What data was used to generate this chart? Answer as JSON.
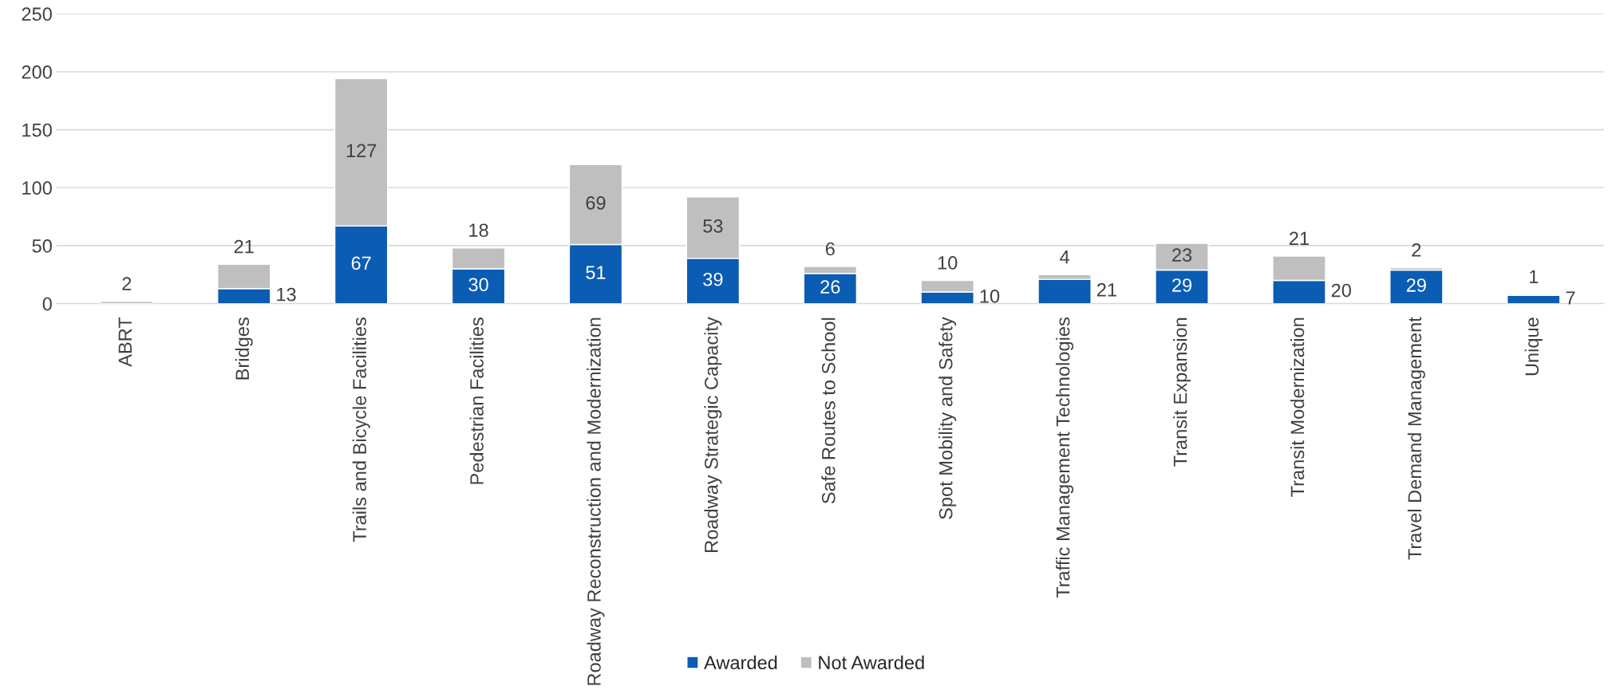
{
  "chart_data": {
    "type": "bar",
    "stacked": true,
    "categories": [
      "ABRT",
      "Bridges",
      "Trails and Bicycle Facilities",
      "Pedestrian Facilities",
      "Roadway Reconstruction and Modernization",
      "Roadway Strategic Capacity",
      "Safe Routes to School",
      "Spot Mobility and Safety",
      "Traffic Management Technologies",
      "Transit Expansion",
      "Transit Modernization",
      "Travel Demand Management",
      "Unique"
    ],
    "series": [
      {
        "name": "Awarded",
        "color": "#0b5cb3",
        "values": [
          0,
          13,
          67,
          30,
          51,
          39,
          26,
          10,
          21,
          29,
          20,
          29,
          7
        ],
        "value_labels": [
          null,
          "13",
          "67",
          "30",
          "51",
          "39",
          "26",
          "10",
          "21",
          "29",
          "20",
          "29",
          "7"
        ]
      },
      {
        "name": "Not Awarded",
        "color": "#bfbfbf",
        "values": [
          2,
          21,
          127,
          18,
          69,
          53,
          6,
          10,
          4,
          23,
          21,
          2,
          1
        ],
        "value_labels": [
          "2",
          "21",
          "127",
          "18",
          "69",
          "53",
          "6",
          "10",
          "4",
          "23",
          "21",
          "2",
          "1"
        ]
      }
    ],
    "ylim": [
      0,
      250
    ],
    "yticks": [
      0,
      50,
      100,
      150,
      200,
      250
    ],
    "grid": "y",
    "legend": "bottom"
  }
}
